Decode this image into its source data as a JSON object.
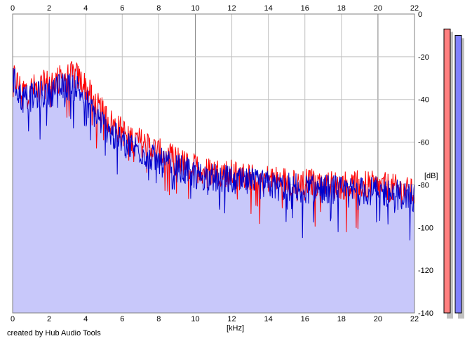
{
  "app": {
    "credit": "created by Hub Audio Tools"
  },
  "chart_data": {
    "type": "area",
    "title": "",
    "xlabel": "[kHz]",
    "ylabel": "[dB]",
    "xlim": [
      0,
      22
    ],
    "ylim": [
      -140,
      0
    ],
    "xticks": [
      0,
      2,
      4,
      6,
      8,
      10,
      12,
      14,
      16,
      18,
      20,
      22
    ],
    "yticks": [
      0,
      -20,
      -40,
      -60,
      -80,
      -100,
      -120,
      -140
    ],
    "grid": true,
    "series": [
      {
        "color": "#ff0000",
        "x": [
          0,
          0.5,
          1,
          1.5,
          2,
          2.5,
          3,
          3.5,
          4,
          4.5,
          5,
          5.5,
          6,
          6.5,
          7,
          7.5,
          8,
          8.5,
          9,
          9.5,
          10,
          10.5,
          11,
          11.5,
          12,
          12.5,
          13,
          13.5,
          14,
          14.5,
          15,
          15.5,
          16,
          16.5,
          17,
          17.5,
          18,
          18.5,
          19,
          19.5,
          20,
          20.5,
          21,
          21.5,
          22
        ],
        "values": [
          -28,
          -36,
          -35,
          -34,
          -32,
          -31,
          -29,
          -29,
          -34,
          -42,
          -47,
          -52,
          -55,
          -58,
          -60,
          -62,
          -65,
          -67,
          -68,
          -71,
          -72,
          -73,
          -74,
          -74,
          -75,
          -76,
          -76,
          -77,
          -77,
          -78,
          -78,
          -78,
          -79,
          -79,
          -79,
          -80,
          -80,
          -80,
          -80,
          -80,
          -81,
          -81,
          -82,
          -83,
          -84
        ]
      },
      {
        "color": "#0000cc",
        "x": [
          0,
          0.5,
          1,
          1.5,
          2,
          2.5,
          3,
          3.5,
          4,
          4.5,
          5,
          5.5,
          6,
          6.5,
          7,
          7.5,
          8,
          8.5,
          9,
          9.5,
          10,
          10.5,
          11,
          11.5,
          12,
          12.5,
          13,
          13.5,
          14,
          14.5,
          15,
          15.5,
          16,
          16.5,
          17,
          17.5,
          18,
          18.5,
          19,
          19.5,
          20,
          20.5,
          21,
          21.5,
          22
        ],
        "values": [
          -30,
          -40,
          -39,
          -38,
          -37,
          -35,
          -34,
          -34,
          -40,
          -47,
          -52,
          -57,
          -60,
          -62,
          -64,
          -67,
          -69,
          -71,
          -72,
          -74,
          -75,
          -76,
          -77,
          -77,
          -78,
          -79,
          -79,
          -80,
          -80,
          -81,
          -81,
          -81,
          -82,
          -82,
          -82,
          -82,
          -83,
          -83,
          -83,
          -83,
          -83,
          -84,
          -84,
          -85,
          -86
        ]
      }
    ],
    "fill_color": "#c8c8fa",
    "level_meters": [
      {
        "color": "#ff8080",
        "level_db": -7
      },
      {
        "color": "#8080ff",
        "level_db": -10
      }
    ]
  }
}
